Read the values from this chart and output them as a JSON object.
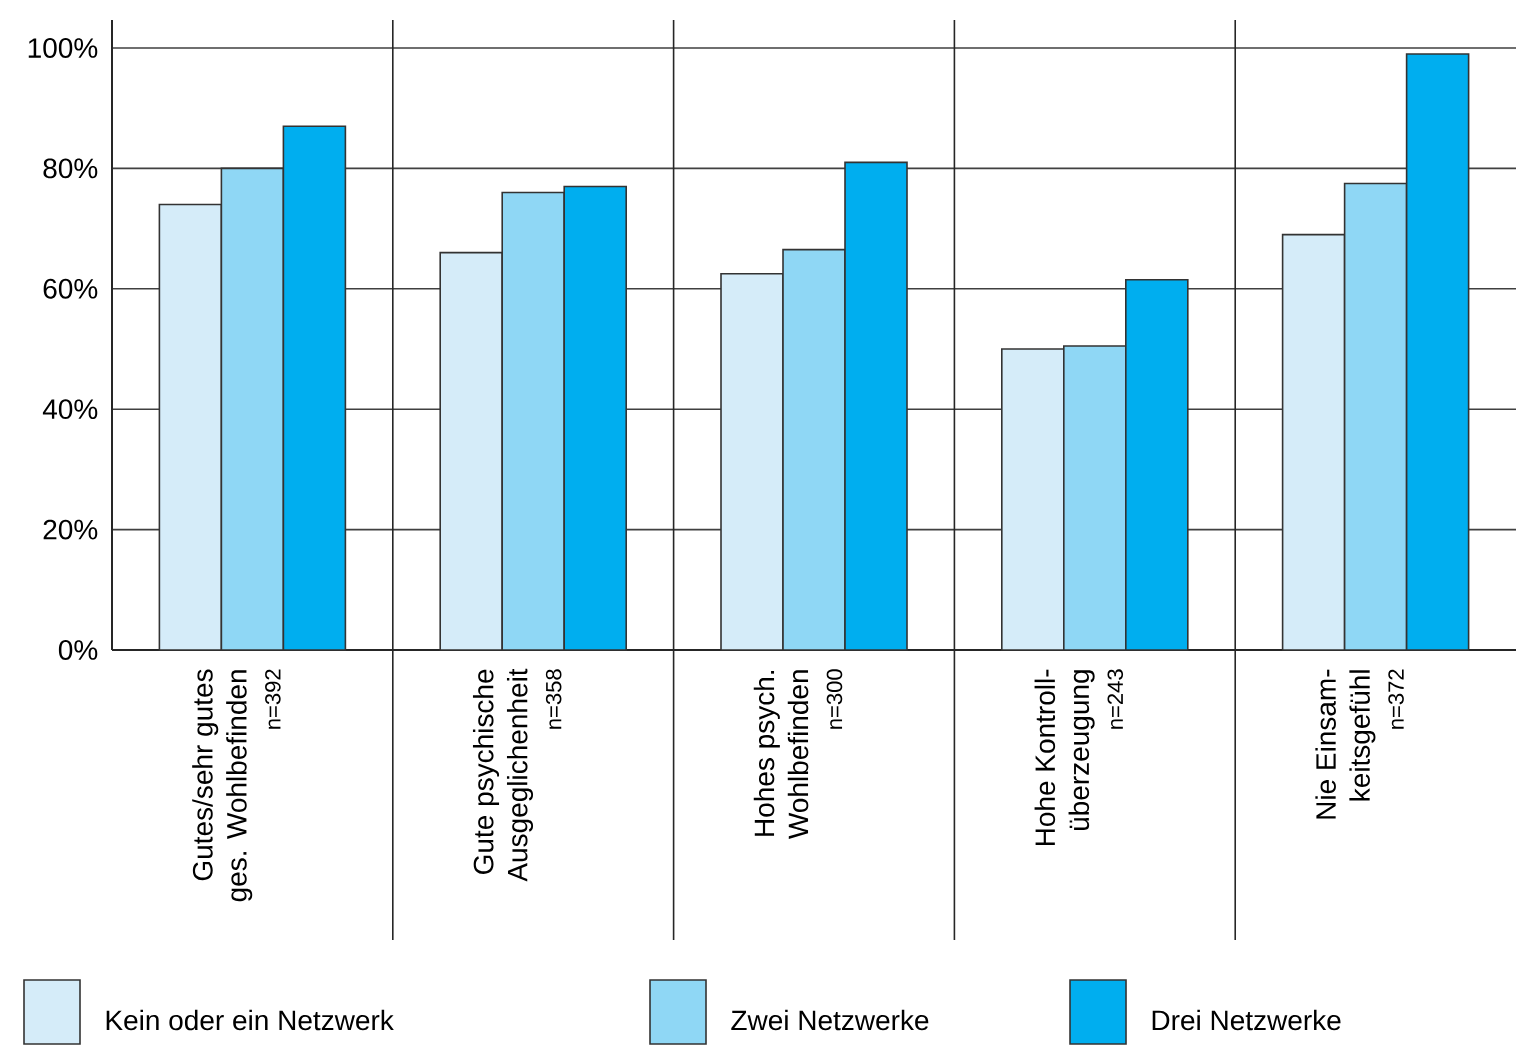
{
  "chart_data": {
    "type": "bar",
    "categories": [
      "Gutes/sehr gutes ges. Wohlbefinden",
      "Gute psychische Ausgeglichenheit",
      "Hohes psych. Wohlbefinden",
      "Hohe Kontroll-überzeugung",
      "Nie Einsam-keitsgefühl"
    ],
    "series": [
      {
        "name": "Kein oder ein Netzwerk",
        "color": "#d5ecf9",
        "values": [
          74,
          66,
          62.5,
          50,
          69
        ]
      },
      {
        "name": "Zwei Netzwerke",
        "color": "#8fd7f5",
        "values": [
          80,
          76,
          66.5,
          50.5,
          77.5
        ]
      },
      {
        "name": "Drei Netzwerke",
        "color": "#00aeef",
        "values": [
          87,
          77,
          81,
          61.5,
          99
        ]
      }
    ],
    "ylim": [
      0,
      100
    ],
    "yticks": [
      {
        "value": 0,
        "label": "0%"
      },
      {
        "value": 20,
        "label": "20%"
      },
      {
        "value": 40,
        "label": "40%"
      },
      {
        "value": 60,
        "label": "60%"
      },
      {
        "value": 80,
        "label": "80%"
      },
      {
        "value": 100,
        "label": "100%"
      }
    ],
    "grid": "y",
    "legend": "bottom",
    "annotations": [
      "n=392",
      "n=358",
      "n=300",
      "n=243",
      "n=372"
    ]
  }
}
